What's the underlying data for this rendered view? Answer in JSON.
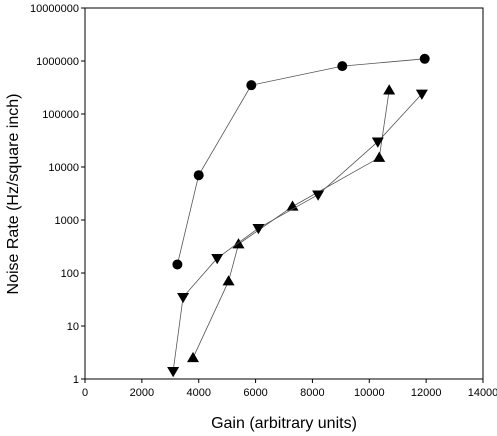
{
  "chart_data": {
    "type": "scatter",
    "title": "",
    "xlabel": "Gain (arbitrary units)",
    "ylabel": "Noise Rate (Hz/square inch)",
    "xlim": [
      0,
      14000
    ],
    "ylim": [
      1,
      10000000
    ],
    "yscale": "log",
    "grid": false,
    "legend": "none",
    "x_ticks": [
      0,
      2000,
      4000,
      6000,
      8000,
      10000,
      12000,
      14000
    ],
    "x_tick_labels": [
      "0",
      "2000",
      "4000",
      "6000",
      "8000",
      "10000",
      "12000",
      "14000"
    ],
    "y_ticks": [
      1,
      10,
      100,
      1000,
      10000,
      100000,
      1000000,
      10000000
    ],
    "y_tick_labels": [
      "1",
      "10",
      "100",
      "1000",
      "10000",
      "100000",
      "1000000",
      "10000000"
    ],
    "series": [
      {
        "marker": "circle",
        "x": [
          3250,
          4000,
          5850,
          9050,
          11950
        ],
        "y": [
          145,
          7000,
          350000,
          800000,
          1100000
        ]
      },
      {
        "marker": "triangle-up",
        "x": [
          3800,
          5050,
          5400,
          7300,
          10350,
          10700
        ],
        "y": [
          2.5,
          70,
          350,
          1800,
          15000,
          280000
        ]
      },
      {
        "marker": "triangle-down",
        "x": [
          3100,
          3450,
          4650,
          6100,
          8200,
          10300,
          11850
        ],
        "y": [
          1.4,
          35,
          190,
          700,
          3000,
          30000,
          240000
        ]
      }
    ]
  }
}
